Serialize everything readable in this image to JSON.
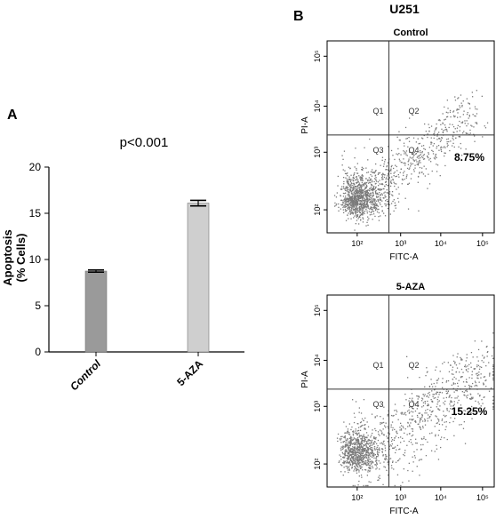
{
  "chart_data": [
    {
      "panel_label": "A",
      "type": "bar",
      "annotation": "p<0.001",
      "ylabel_line1": "Apoptosis",
      "ylabel_line2": "(% Cells)",
      "categories": [
        "Control",
        "5-AZA"
      ],
      "values": [
        8.75,
        16.1
      ],
      "errors": [
        0.12,
        0.3
      ],
      "ylim": [
        0,
        20
      ],
      "yticks": [
        0,
        5,
        10,
        15,
        20
      ],
      "bar_colors": [
        "#9a9a9a",
        "#cfcfcf"
      ]
    },
    {
      "panel_label": "B",
      "type": "scatter",
      "cell_line": "U251",
      "xlabel": "FITC-A",
      "ylabel": "PI-A",
      "tick_labels": [
        "10²",
        "10³",
        "10⁴",
        "10⁵"
      ],
      "quadrants": [
        "Q1",
        "Q2",
        "Q3",
        "Q4"
      ],
      "plots": [
        {
          "title": "Control",
          "q4_percent": "8.75%",
          "shift": 0.0
        },
        {
          "title": "5-AZA",
          "q4_percent": "15.25%",
          "shift": 0.35
        }
      ]
    }
  ]
}
